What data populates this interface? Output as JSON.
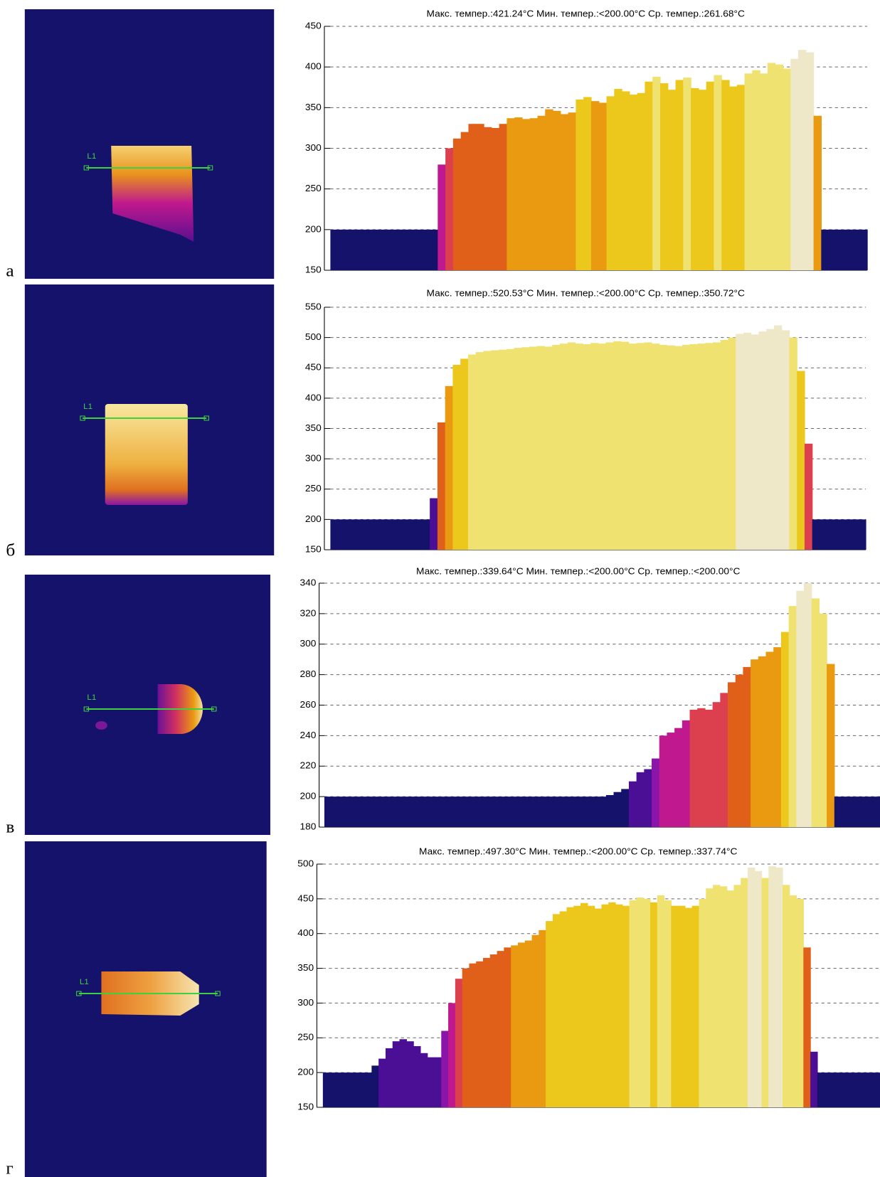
{
  "chart_data": [
    {
      "type": "bar",
      "panel": "а",
      "title": "Макс. темпер.:421.24°C Мин. темпер.:<200.00°C Ср. темпер.:261.68°C",
      "values": [
        200,
        200,
        200,
        200,
        200,
        200,
        200,
        200,
        200,
        200,
        200,
        200,
        200,
        200,
        280,
        300,
        312,
        320,
        330,
        330,
        326,
        325,
        330,
        337,
        338,
        336,
        337,
        340,
        348,
        346,
        342,
        344,
        360,
        363,
        358,
        356,
        364,
        373,
        370,
        366,
        368,
        382,
        388,
        380,
        372,
        384,
        387,
        374,
        372,
        382,
        390,
        384,
        376,
        378,
        392,
        396,
        392,
        405,
        403,
        398,
        410,
        421,
        418,
        340,
        200,
        200,
        200,
        200,
        200,
        200
      ],
      "ylim": [
        150,
        450
      ],
      "yticks": [
        150,
        200,
        250,
        300,
        350,
        400,
        450
      ],
      "grid": true,
      "colormap": [
        "#15126b",
        "#4a0f95",
        "#8a15a8",
        "#c0188e",
        "#dc3f4e",
        "#e0601a",
        "#ea9a10",
        "#ecc81c",
        "#f0e270",
        "#eee8c8"
      ]
    },
    {
      "type": "bar",
      "panel": "б",
      "title": "Макс. темпер.:520.53°C Мин. темпер.:<200.00°C Ср. темпер.:350.72°C",
      "values": [
        200,
        200,
        200,
        200,
        200,
        200,
        200,
        200,
        200,
        200,
        200,
        200,
        200,
        235,
        360,
        420,
        455,
        465,
        472,
        476,
        478,
        479,
        480,
        481,
        483,
        484,
        485,
        486,
        485,
        488,
        490,
        492,
        490,
        489,
        491,
        490,
        492,
        494,
        493,
        490,
        491,
        492,
        490,
        488,
        487,
        486,
        488,
        489,
        490,
        491,
        492,
        496,
        500,
        506,
        508,
        505,
        510,
        514,
        520,
        512,
        500,
        445,
        325,
        200,
        200,
        200,
        200,
        200,
        200,
        200
      ],
      "ylim": [
        150,
        550
      ],
      "yticks": [
        150,
        200,
        250,
        300,
        350,
        400,
        450,
        500,
        550
      ],
      "grid": true,
      "colormap": [
        "#15126b",
        "#4a0f95",
        "#8a15a8",
        "#c0188e",
        "#dc3f4e",
        "#e0601a",
        "#ea9a10",
        "#ecc81c",
        "#f0e270",
        "#eee8c8"
      ]
    },
    {
      "type": "bar",
      "panel": "в",
      "title": "Макс. темпер.:339.64°C Мин. темпер.:<200.00°C Ср. темпер.:<200.00°C",
      "values": [
        200,
        200,
        200,
        200,
        200,
        200,
        200,
        200,
        200,
        200,
        200,
        200,
        200,
        200,
        200,
        200,
        200,
        200,
        200,
        200,
        200,
        200,
        200,
        200,
        200,
        200,
        200,
        200,
        200,
        200,
        200,
        200,
        200,
        200,
        200,
        200,
        200,
        201,
        203,
        205,
        210,
        216,
        218,
        225,
        240,
        242,
        245,
        250,
        257,
        258,
        257,
        262,
        268,
        275,
        280,
        285,
        290,
        292,
        295,
        298,
        308,
        325,
        335,
        340,
        330,
        320,
        287,
        200,
        200,
        200,
        200,
        200,
        200
      ],
      "ylim": [
        180,
        340
      ],
      "yticks": [
        180,
        200,
        220,
        240,
        260,
        280,
        300,
        320,
        340
      ],
      "grid": true,
      "colormap": [
        "#15126b",
        "#4a0f95",
        "#8a15a8",
        "#c0188e",
        "#dc3f4e",
        "#e0601a",
        "#ea9a10",
        "#ecc81c",
        "#f0e270",
        "#eee8c8"
      ]
    },
    {
      "type": "bar",
      "panel": "г",
      "title": "Макс. темпер.:497.30°C Мин. темпер.:<200.00°C Ср. темпер.:337.74°C",
      "values": [
        200,
        200,
        200,
        200,
        200,
        200,
        200,
        210,
        220,
        235,
        245,
        248,
        245,
        238,
        228,
        222,
        222,
        260,
        300,
        335,
        350,
        357,
        360,
        365,
        370,
        375,
        380,
        383,
        387,
        390,
        398,
        405,
        418,
        428,
        432,
        438,
        440,
        444,
        440,
        436,
        442,
        445,
        442,
        440,
        448,
        452,
        450,
        445,
        455,
        448,
        440,
        440,
        437,
        440,
        450,
        465,
        470,
        468,
        462,
        470,
        480,
        495,
        490,
        480,
        497,
        495,
        470,
        455,
        450,
        380,
        230,
        200,
        200,
        200,
        200,
        200,
        200,
        200,
        200,
        200
      ],
      "ylim": [
        150,
        500
      ],
      "yticks": [
        150,
        200,
        250,
        300,
        350,
        400,
        450,
        500
      ],
      "grid": true,
      "colormap": [
        "#15126b",
        "#4a0f95",
        "#8a15a8",
        "#c0188e",
        "#dc3f4e",
        "#e0601a",
        "#ea9a10",
        "#ecc81c",
        "#f0e270",
        "#eee8c8"
      ]
    }
  ]
}
